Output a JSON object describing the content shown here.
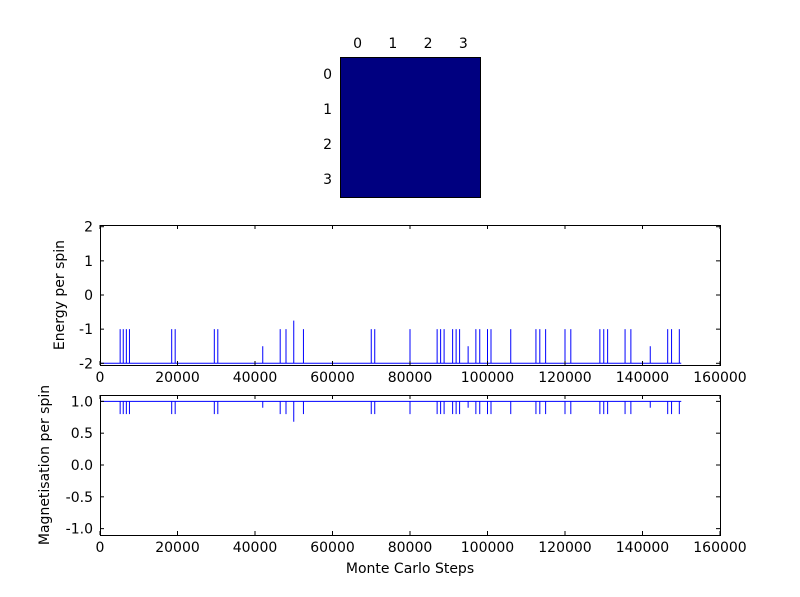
{
  "figure": {
    "background": "#ffffff"
  },
  "chart_data": [
    {
      "type": "heatmap",
      "name": "spin-lattice",
      "rows": 4,
      "cols": 4,
      "x_tick_labels": [
        "0",
        "1",
        "2",
        "3"
      ],
      "y_tick_labels": [
        "0",
        "1",
        "2",
        "3"
      ],
      "values": [
        [
          1,
          1,
          1,
          1
        ],
        [
          1,
          1,
          1,
          1
        ],
        [
          1,
          1,
          1,
          1
        ],
        [
          1,
          1,
          1,
          1
        ]
      ],
      "cell_color": "#000080"
    },
    {
      "type": "line",
      "name": "energy",
      "ylabel": "Energy per spin",
      "xlim": [
        0,
        160000
      ],
      "ylim": [
        -2.05,
        2.05
      ],
      "x_ticks": [
        0,
        20000,
        40000,
        60000,
        80000,
        100000,
        120000,
        140000,
        160000
      ],
      "x_tick_labels": [
        "0",
        "20000",
        "40000",
        "60000",
        "80000",
        "100000",
        "120000",
        "140000",
        "160000"
      ],
      "y_ticks": [
        2,
        1,
        0,
        -1,
        -2
      ],
      "y_tick_labels": [
        "2",
        "1",
        "0",
        "-1",
        "-2"
      ],
      "baseline": -2,
      "baseline_x": [
        0,
        150000
      ],
      "line_color": "#0000ff",
      "spikes": [
        [
          5200,
          -1
        ],
        [
          6000,
          -1
        ],
        [
          6800,
          -1
        ],
        [
          7600,
          -1
        ],
        [
          18500,
          -1
        ],
        [
          19400,
          -1
        ],
        [
          29500,
          -1
        ],
        [
          30400,
          -1
        ],
        [
          42000,
          -1.5
        ],
        [
          46500,
          -1
        ],
        [
          48000,
          -1
        ],
        [
          50000,
          -0.75
        ],
        [
          52500,
          -1
        ],
        [
          70000,
          -1
        ],
        [
          70900,
          -1
        ],
        [
          80000,
          -1
        ],
        [
          87000,
          -1
        ],
        [
          87900,
          -1
        ],
        [
          88800,
          -1
        ],
        [
          91000,
          -1
        ],
        [
          91900,
          -1
        ],
        [
          92800,
          -1
        ],
        [
          95000,
          -1.5
        ],
        [
          97000,
          -1
        ],
        [
          98000,
          -1
        ],
        [
          100000,
          -1
        ],
        [
          100900,
          -1
        ],
        [
          106000,
          -1
        ],
        [
          112500,
          -1
        ],
        [
          113500,
          -1
        ],
        [
          115000,
          -1
        ],
        [
          120000,
          -1
        ],
        [
          121500,
          -1
        ],
        [
          129000,
          -1
        ],
        [
          130000,
          -1
        ],
        [
          131000,
          -1
        ],
        [
          135500,
          -1
        ],
        [
          137000,
          -1
        ],
        [
          142000,
          -1.5
        ],
        [
          146500,
          -1
        ],
        [
          147500,
          -1
        ],
        [
          149500,
          -1
        ]
      ]
    },
    {
      "type": "line",
      "name": "magnetisation",
      "ylabel": "Magnetisation per spin",
      "xlabel": "Monte Carlo Steps",
      "xlim": [
        0,
        160000
      ],
      "ylim": [
        -1.1,
        1.1
      ],
      "x_ticks": [
        0,
        20000,
        40000,
        60000,
        80000,
        100000,
        120000,
        140000,
        160000
      ],
      "x_tick_labels": [
        "0",
        "20000",
        "40000",
        "60000",
        "80000",
        "100000",
        "120000",
        "140000",
        "160000"
      ],
      "y_ticks": [
        1.0,
        0.5,
        0.0,
        -0.5,
        -1.0
      ],
      "y_tick_labels": [
        "1.0",
        "0.5",
        "0.0",
        "-0.5",
        "-1.0"
      ],
      "baseline": 1.0,
      "baseline_x": [
        0,
        150000
      ],
      "line_color": "#0000ff",
      "spikes": [
        [
          5200,
          0.8
        ],
        [
          6000,
          0.8
        ],
        [
          6800,
          0.8
        ],
        [
          7600,
          0.8
        ],
        [
          18500,
          0.8
        ],
        [
          19400,
          0.8
        ],
        [
          29500,
          0.8
        ],
        [
          30400,
          0.8
        ],
        [
          42000,
          0.9
        ],
        [
          46500,
          0.8
        ],
        [
          48000,
          0.8
        ],
        [
          50000,
          0.68
        ],
        [
          52500,
          0.8
        ],
        [
          70000,
          0.8
        ],
        [
          70900,
          0.8
        ],
        [
          80000,
          0.8
        ],
        [
          87000,
          0.8
        ],
        [
          87900,
          0.8
        ],
        [
          88800,
          0.8
        ],
        [
          91000,
          0.8
        ],
        [
          91900,
          0.8
        ],
        [
          92800,
          0.8
        ],
        [
          95000,
          0.9
        ],
        [
          97000,
          0.8
        ],
        [
          98000,
          0.8
        ],
        [
          100000,
          0.8
        ],
        [
          100900,
          0.8
        ],
        [
          106000,
          0.8
        ],
        [
          112500,
          0.8
        ],
        [
          113500,
          0.8
        ],
        [
          115000,
          0.8
        ],
        [
          120000,
          0.8
        ],
        [
          121500,
          0.8
        ],
        [
          129000,
          0.8
        ],
        [
          130000,
          0.8
        ],
        [
          131000,
          0.8
        ],
        [
          135500,
          0.8
        ],
        [
          137000,
          0.8
        ],
        [
          142000,
          0.9
        ],
        [
          146500,
          0.8
        ],
        [
          147500,
          0.8
        ],
        [
          149500,
          0.8
        ]
      ]
    }
  ]
}
